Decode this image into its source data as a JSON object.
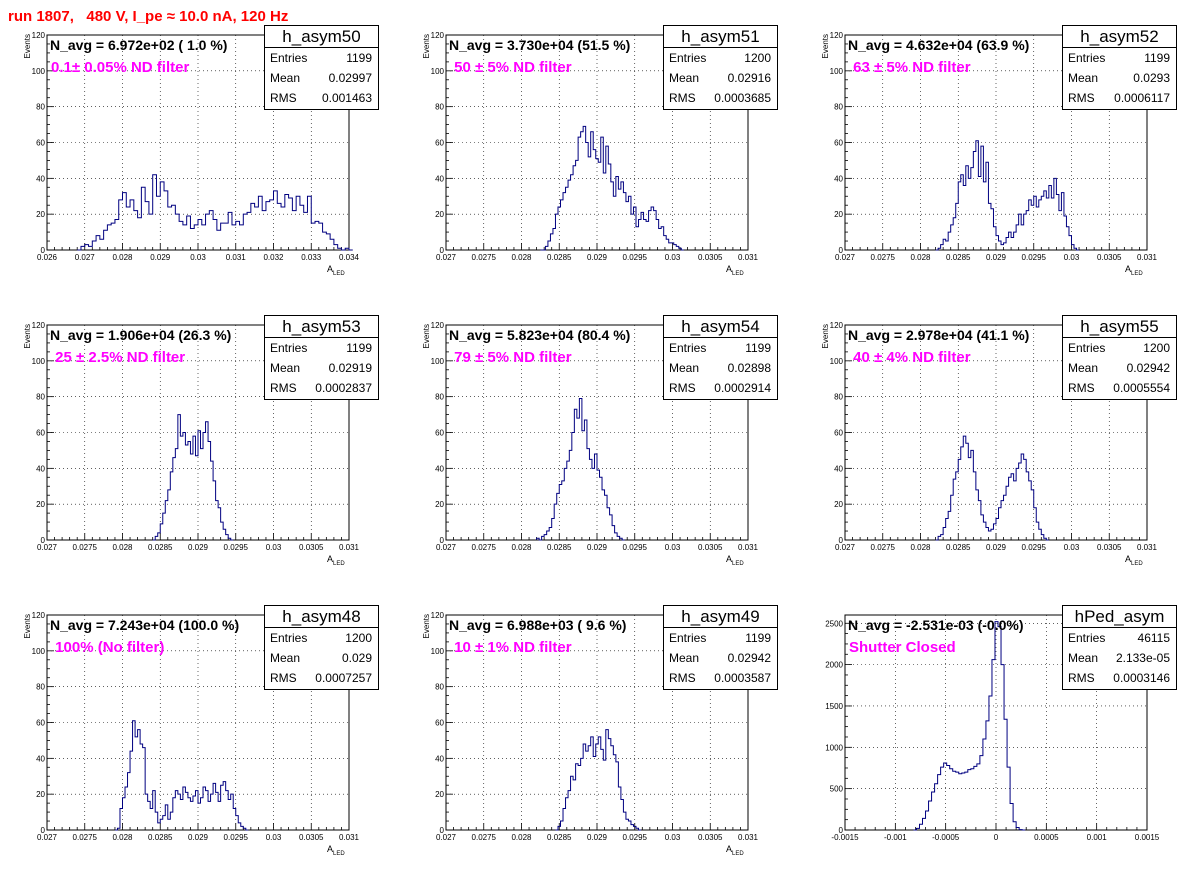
{
  "title": "run 1807,   480 V, I_pe ≈ 10.0 nA, 120 Hz",
  "colors": {
    "title": "#ff0000",
    "filter_label": "#ff00ff",
    "histogram_line": "#000080"
  },
  "chart_data": [
    {
      "type": "histogram",
      "name": "h_asym50",
      "stats": {
        "entries": "1199",
        "mean": "0.02997",
        "rms": "0.001463"
      },
      "navg": "N_avg = 6.972e+02 ( 1.0 %)",
      "filter": "0.1± 0.05% ND filter",
      "xlabel": "A",
      "xlabel_sub": "LED",
      "ylabel": "Events",
      "xlim": [
        0.026,
        0.034
      ],
      "ylim": [
        0,
        120
      ],
      "xticks": [
        "0.026",
        "0.027",
        "0.028",
        "0.029",
        "0.03",
        "0.031",
        "0.032",
        "0.033",
        "0.034"
      ],
      "yticks": [
        "0",
        "20",
        "40",
        "60",
        "80",
        "100",
        "120"
      ],
      "bins_x0": 0.0268,
      "bin_width": 0.0001,
      "values": [
        0,
        2,
        3,
        2,
        5,
        8,
        6,
        11,
        14,
        15,
        17,
        28,
        32,
        24,
        28,
        22,
        18,
        35,
        27,
        20,
        42,
        30,
        38,
        33,
        24,
        25,
        20,
        16,
        14,
        19,
        12,
        14,
        17,
        14,
        20,
        22,
        17,
        11,
        15,
        15,
        21,
        14,
        16,
        14,
        20,
        21,
        26,
        24,
        30,
        22,
        27,
        28,
        33,
        26,
        24,
        31,
        29,
        22,
        30,
        25,
        21,
        30,
        15,
        16,
        15,
        10,
        9,
        6,
        3,
        1,
        0,
        1,
        0
      ]
    },
    {
      "type": "histogram",
      "name": "h_asym51",
      "stats": {
        "entries": "1200",
        "mean": "0.02916",
        "rms": "0.0003685"
      },
      "navg": "N_avg = 3.730e+04 (51.5 %)",
      "filter": " 50 ± 5% ND filter",
      "xlabel": "A",
      "xlabel_sub": "LED",
      "ylabel": "Events",
      "xlim": [
        0.027,
        0.031
      ],
      "ylim": [
        0,
        120
      ],
      "xticks": [
        "0.027",
        "0.0275",
        "0.028",
        "0.0285",
        "0.029",
        "0.0295",
        "0.03",
        "0.0305",
        "0.031"
      ],
      "yticks": [
        "0",
        "20",
        "40",
        "60",
        "80",
        "100",
        "120"
      ],
      "bins_x0": 0.02825,
      "bin_width": 3.333e-05,
      "values": [
        0,
        0,
        2,
        5,
        9,
        12,
        20,
        24,
        28,
        32,
        35,
        39,
        42,
        47,
        50,
        63,
        66,
        69,
        60,
        52,
        66,
        56,
        51,
        49,
        63,
        43,
        58,
        48,
        38,
        30,
        41,
        34,
        38,
        32,
        27,
        30,
        20,
        24,
        13,
        17,
        21,
        17,
        16,
        22,
        24,
        22,
        17,
        12,
        13,
        8,
        6,
        4,
        4,
        3,
        2,
        1,
        0
      ]
    },
    {
      "type": "histogram",
      "name": "h_asym52",
      "stats": {
        "entries": "1199",
        "mean": "0.0293",
        "rms": "0.0006117"
      },
      "navg": "N_avg = 4.632e+04 (63.9 %)",
      "filter": " 63 ± 5% ND filter",
      "xlabel": "A",
      "xlabel_sub": "LED",
      "ylabel": "Events",
      "xlim": [
        0.027,
        0.031
      ],
      "ylim": [
        0,
        120
      ],
      "xticks": [
        "0.027",
        "0.0275",
        "0.028",
        "0.0285",
        "0.029",
        "0.0295",
        "0.03",
        "0.0305",
        "0.031"
      ],
      "yticks": [
        "0",
        "20",
        "40",
        "60",
        "80",
        "100",
        "120"
      ],
      "bins_x0": 0.0282,
      "bin_width": 3.333e-05,
      "values": [
        0,
        1,
        3,
        6,
        5,
        10,
        14,
        18,
        26,
        38,
        42,
        36,
        47,
        40,
        46,
        55,
        61,
        41,
        58,
        38,
        49,
        26,
        23,
        13,
        8,
        5,
        3,
        4,
        7,
        10,
        7,
        10,
        14,
        20,
        14,
        20,
        22,
        28,
        25,
        30,
        24,
        28,
        30,
        33,
        29,
        36,
        29,
        40,
        31,
        22,
        32,
        19,
        13,
        8,
        3,
        1,
        0
      ]
    },
    {
      "type": "histogram",
      "name": "h_asym53",
      "stats": {
        "entries": "1199",
        "mean": "0.02919",
        "rms": "0.0002837"
      },
      "navg": "N_avg = 1.906e+04 (26.3 %)",
      "filter": " 25 ± 2.5% ND filter",
      "xlabel": "A",
      "xlabel_sub": "LED",
      "ylabel": "Events",
      "xlim": [
        0.027,
        0.031
      ],
      "ylim": [
        0,
        120
      ],
      "xticks": [
        "0.027",
        "0.0275",
        "0.028",
        "0.0285",
        "0.029",
        "0.0295",
        "0.03",
        "0.0305",
        "0.031"
      ],
      "yticks": [
        "0",
        "20",
        "40",
        "60",
        "80",
        "100",
        "120"
      ],
      "bins_x0": 0.0284,
      "bin_width": 3.333e-05,
      "values": [
        0,
        2,
        4,
        9,
        15,
        22,
        28,
        38,
        46,
        51,
        70,
        58,
        60,
        53,
        55,
        48,
        58,
        47,
        61,
        51,
        60,
        66,
        55,
        44,
        33,
        22,
        18,
        10,
        6,
        3,
        1,
        0
      ]
    },
    {
      "type": "histogram",
      "name": "h_asym54",
      "stats": {
        "entries": "1199",
        "mean": "0.02898",
        "rms": "0.0002914"
      },
      "navg": "N_avg = 5.823e+04 (80.4 %)",
      "filter": " 79 ± 5% ND filter",
      "xlabel": "A",
      "xlabel_sub": "LED",
      "ylabel": "Events",
      "xlim": [
        0.027,
        0.031
      ],
      "ylim": [
        0,
        120
      ],
      "xticks": [
        "0.027",
        "0.0275",
        "0.028",
        "0.0285",
        "0.029",
        "0.0295",
        "0.03",
        "0.0305",
        "0.031"
      ],
      "yticks": [
        "0",
        "20",
        "40",
        "60",
        "80",
        "100",
        "120"
      ],
      "bins_x0": 0.0282,
      "bin_width": 3.333e-05,
      "values": [
        1,
        0,
        2,
        3,
        5,
        7,
        12,
        20,
        26,
        31,
        33,
        40,
        44,
        50,
        60,
        73,
        68,
        79,
        61,
        67,
        51,
        45,
        40,
        48,
        39,
        35,
        28,
        25,
        18,
        14,
        8,
        4,
        2,
        1,
        0
      ]
    },
    {
      "type": "histogram",
      "name": "h_asym55",
      "stats": {
        "entries": "1200",
        "mean": "0.02942",
        "rms": "0.0005554"
      },
      "navg": "N_avg = 2.978e+04 (41.1 %)",
      "filter": " 40 ± 4% ND filter",
      "xlabel": "A",
      "xlabel_sub": "LED",
      "ylabel": "Events",
      "xlim": [
        0.027,
        0.031
      ],
      "ylim": [
        0,
        120
      ],
      "xticks": [
        "0.027",
        "0.0275",
        "0.028",
        "0.0285",
        "0.029",
        "0.0295",
        "0.03",
        "0.0305",
        "0.031"
      ],
      "yticks": [
        "0",
        "20",
        "40",
        "60",
        "80",
        "100",
        "120"
      ],
      "bins_x0": 0.0282,
      "bin_width": 3.333e-05,
      "values": [
        0,
        2,
        3,
        7,
        12,
        16,
        25,
        34,
        38,
        45,
        52,
        58,
        54,
        46,
        50,
        38,
        28,
        22,
        14,
        10,
        7,
        5,
        6,
        9,
        12,
        18,
        22,
        25,
        30,
        35,
        37,
        33,
        40,
        43,
        48,
        45,
        38,
        33,
        28,
        18,
        10,
        6,
        3,
        1,
        0
      ]
    },
    {
      "type": "histogram",
      "name": "h_asym48",
      "stats": {
        "entries": "1200",
        "mean": "0.029",
        "rms": "0.0007257"
      },
      "navg": "N_avg = 7.243e+04 (100.0 %)",
      "filter": " 100% (No filter)",
      "xlabel": "A",
      "xlabel_sub": "LED",
      "ylabel": "Events",
      "xlim": [
        0.027,
        0.031
      ],
      "ylim": [
        0,
        120
      ],
      "xticks": [
        "0.027",
        "0.0275",
        "0.028",
        "0.0285",
        "0.029",
        "0.0295",
        "0.03",
        "0.0305",
        "0.031"
      ],
      "yticks": [
        "0",
        "20",
        "40",
        "60",
        "80",
        "100",
        "120"
      ],
      "bins_x0": 0.0279,
      "bin_width": 3.333e-05,
      "values": [
        0,
        1,
        12,
        18,
        24,
        32,
        44,
        61,
        52,
        56,
        48,
        46,
        20,
        16,
        12,
        22,
        10,
        4,
        6,
        8,
        14,
        6,
        10,
        18,
        22,
        20,
        17,
        24,
        21,
        18,
        16,
        19,
        22,
        15,
        18,
        24,
        22,
        16,
        20,
        26,
        21,
        16,
        25,
        27,
        22,
        17,
        20,
        12,
        8,
        4,
        2,
        1,
        0
      ]
    },
    {
      "type": "histogram",
      "name": "h_asym49",
      "stats": {
        "entries": "1199",
        "mean": "0.02942",
        "rms": "0.0003587"
      },
      "navg": "N_avg = 6.988e+03 ( 9.6 %)",
      "filter": " 10 ± 1% ND filter",
      "xlabel": "A",
      "xlabel_sub": "LED",
      "ylabel": "Events",
      "xlim": [
        0.027,
        0.031
      ],
      "ylim": [
        0,
        120
      ],
      "xticks": [
        "0.027",
        "0.0275",
        "0.028",
        "0.0285",
        "0.029",
        "0.0295",
        "0.03",
        "0.0305",
        "0.031"
      ],
      "yticks": [
        "0",
        "20",
        "40",
        "60",
        "80",
        "100",
        "120"
      ],
      "bins_x0": 0.02845,
      "bin_width": 3.333e-05,
      "values": [
        0,
        2,
        5,
        12,
        18,
        22,
        30,
        28,
        37,
        36,
        40,
        48,
        44,
        47,
        52,
        41,
        48,
        52,
        45,
        39,
        56,
        51,
        47,
        42,
        38,
        24,
        17,
        10,
        6,
        5,
        3,
        2,
        1,
        0
      ]
    },
    {
      "type": "histogram",
      "name": "hPed_asym",
      "stats": {
        "entries": "46115",
        "mean": "2.133e-05",
        "rms": "0.0003146"
      },
      "navg": "N_avg = -2.531e-03 (-0.0%)",
      "filter": "Shutter Closed",
      "xlabel": "",
      "xlabel_sub": "",
      "ylabel": "",
      "xlim": [
        -0.0015,
        0.0015
      ],
      "ylim": [
        0,
        2600
      ],
      "xticks": [
        "-0.0015",
        "-0.001",
        "-0.0005",
        "0",
        "0.0005",
        "0.001",
        "0.0015"
      ],
      "yticks": [
        "0",
        "500",
        "1000",
        "1500",
        "2000",
        "2500"
      ],
      "bins_x0": -0.00082,
      "bin_width": 3e-05,
      "values": [
        0,
        20,
        70,
        140,
        230,
        350,
        460,
        560,
        670,
        760,
        810,
        780,
        740,
        710,
        700,
        680,
        690,
        700,
        730,
        740,
        770,
        800,
        900,
        1100,
        1320,
        1620,
        2060,
        2520,
        2460,
        2000,
        1340,
        760,
        320,
        100,
        30,
        5,
        0
      ]
    }
  ]
}
